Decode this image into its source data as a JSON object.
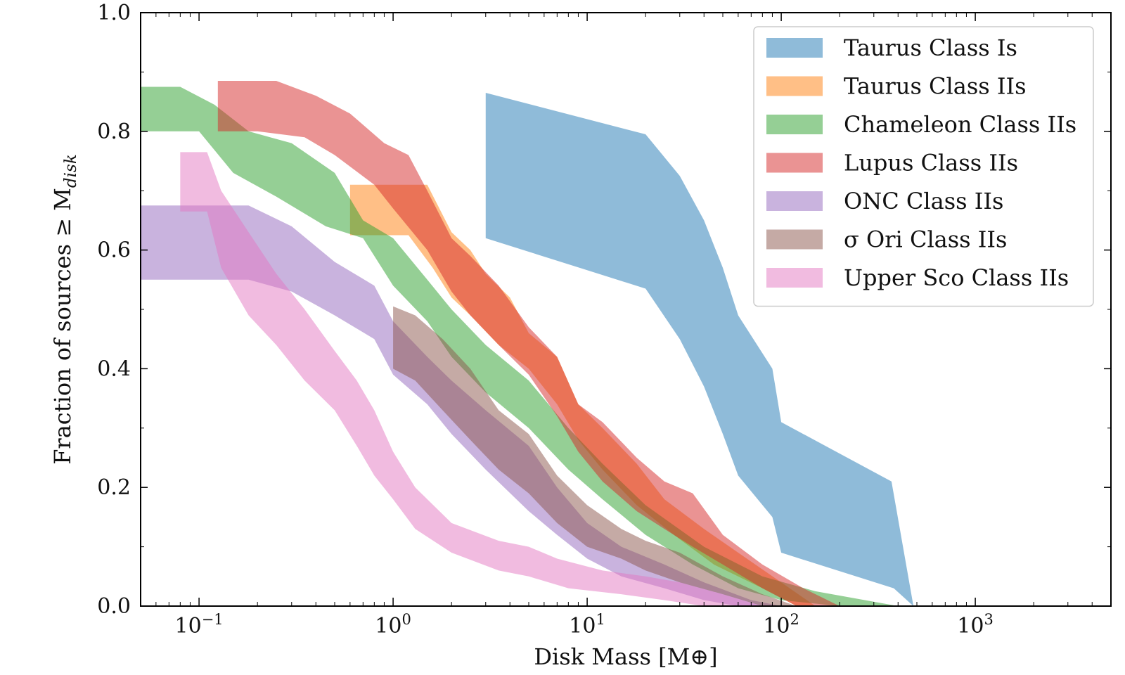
{
  "chart_data": {
    "type": "area",
    "xlabel": "Disk Mass [M⊕]",
    "ylabel": "Fraction of sources ≥ M",
    "ylabel_sub": "disk",
    "xscale": "log",
    "xlim": [
      0.05,
      5000
    ],
    "ylim": [
      0,
      1.0
    ],
    "grid": false,
    "legend_position": "top-right",
    "xticks": [
      {
        "value": 0.1,
        "base": "10",
        "exp": "−1"
      },
      {
        "value": 1,
        "base": "10",
        "exp": "0"
      },
      {
        "value": 10,
        "base": "10",
        "exp": "1"
      },
      {
        "value": 100,
        "base": "10",
        "exp": "2"
      },
      {
        "value": 1000,
        "base": "10",
        "exp": "3"
      }
    ],
    "yticks": [
      "0.0",
      "0.2",
      "0.4",
      "0.6",
      "0.8",
      "1.0"
    ],
    "series": [
      {
        "name": "Taurus Class Is",
        "color": "#1f77b4",
        "upper": [
          [
            3,
            0.865
          ],
          [
            20,
            0.795
          ],
          [
            30,
            0.725
          ],
          [
            40,
            0.65
          ],
          [
            50,
            0.57
          ],
          [
            60,
            0.49
          ],
          [
            90,
            0.4
          ],
          [
            100,
            0.31
          ],
          [
            370,
            0.21
          ],
          [
            480,
            0.0
          ]
        ],
        "lower": [
          [
            3,
            0.62
          ],
          [
            20,
            0.535
          ],
          [
            30,
            0.45
          ],
          [
            40,
            0.37
          ],
          [
            50,
            0.29
          ],
          [
            60,
            0.22
          ],
          [
            90,
            0.15
          ],
          [
            100,
            0.09
          ],
          [
            380,
            0.03
          ],
          [
            480,
            0.0
          ]
        ]
      },
      {
        "name": "Taurus Class IIs",
        "color": "#ff7f0e",
        "upper": [
          [
            0.6,
            0.71
          ],
          [
            1.5,
            0.71
          ],
          [
            2,
            0.63
          ],
          [
            2.5,
            0.6
          ],
          [
            3,
            0.56
          ],
          [
            4,
            0.52
          ],
          [
            5,
            0.46
          ],
          [
            7,
            0.42
          ],
          [
            9,
            0.34
          ],
          [
            12,
            0.3
          ],
          [
            18,
            0.24
          ],
          [
            25,
            0.18
          ],
          [
            40,
            0.13
          ],
          [
            60,
            0.09
          ],
          [
            100,
            0.04
          ],
          [
            150,
            0.0
          ]
        ],
        "lower": [
          [
            0.6,
            0.625
          ],
          [
            1.2,
            0.625
          ],
          [
            1.6,
            0.57
          ],
          [
            2,
            0.52
          ],
          [
            2.5,
            0.49
          ],
          [
            3.5,
            0.44
          ],
          [
            5,
            0.4
          ],
          [
            7,
            0.34
          ],
          [
            9,
            0.28
          ],
          [
            12,
            0.23
          ],
          [
            18,
            0.17
          ],
          [
            28,
            0.12
          ],
          [
            45,
            0.07
          ],
          [
            80,
            0.03
          ],
          [
            120,
            0.0
          ]
        ]
      },
      {
        "name": "Chameleon Class IIs",
        "color": "#2ca02c",
        "upper": [
          [
            0.05,
            0.875
          ],
          [
            0.08,
            0.875
          ],
          [
            0.12,
            0.845
          ],
          [
            0.18,
            0.8
          ],
          [
            0.3,
            0.78
          ],
          [
            0.5,
            0.73
          ],
          [
            0.7,
            0.65
          ],
          [
            1,
            0.62
          ],
          [
            1.5,
            0.55
          ],
          [
            2,
            0.5
          ],
          [
            3,
            0.44
          ],
          [
            5,
            0.38
          ],
          [
            8,
            0.3
          ],
          [
            12,
            0.24
          ],
          [
            20,
            0.17
          ],
          [
            40,
            0.1
          ],
          [
            80,
            0.05
          ],
          [
            150,
            0.025
          ],
          [
            400,
            0.0
          ]
        ],
        "lower": [
          [
            0.05,
            0.8
          ],
          [
            0.1,
            0.8
          ],
          [
            0.15,
            0.73
          ],
          [
            0.25,
            0.69
          ],
          [
            0.45,
            0.64
          ],
          [
            0.7,
            0.62
          ],
          [
            1,
            0.54
          ],
          [
            1.5,
            0.48
          ],
          [
            2,
            0.42
          ],
          [
            3,
            0.36
          ],
          [
            5,
            0.3
          ],
          [
            8,
            0.23
          ],
          [
            12,
            0.18
          ],
          [
            20,
            0.12
          ],
          [
            35,
            0.07
          ],
          [
            60,
            0.03
          ],
          [
            100,
            0.01
          ],
          [
            200,
            0.0
          ]
        ]
      },
      {
        "name": "Lupus Class IIs",
        "color": "#d62728",
        "upper": [
          [
            0.125,
            0.885
          ],
          [
            0.25,
            0.885
          ],
          [
            0.4,
            0.86
          ],
          [
            0.6,
            0.83
          ],
          [
            0.9,
            0.78
          ],
          [
            1.2,
            0.76
          ],
          [
            1.5,
            0.7
          ],
          [
            2,
            0.62
          ],
          [
            2.5,
            0.59
          ],
          [
            3.5,
            0.54
          ],
          [
            5,
            0.47
          ],
          [
            7,
            0.42
          ],
          [
            9,
            0.34
          ],
          [
            12,
            0.31
          ],
          [
            18,
            0.25
          ],
          [
            25,
            0.21
          ],
          [
            35,
            0.19
          ],
          [
            50,
            0.12
          ],
          [
            80,
            0.07
          ],
          [
            130,
            0.03
          ],
          [
            200,
            0.0
          ]
        ],
        "lower": [
          [
            0.125,
            0.8
          ],
          [
            0.2,
            0.8
          ],
          [
            0.35,
            0.79
          ],
          [
            0.5,
            0.76
          ],
          [
            0.8,
            0.71
          ],
          [
            1,
            0.67
          ],
          [
            1.5,
            0.6
          ],
          [
            2,
            0.53
          ],
          [
            2.5,
            0.49
          ],
          [
            3.5,
            0.44
          ],
          [
            5,
            0.39
          ],
          [
            7,
            0.32
          ],
          [
            9,
            0.26
          ],
          [
            12,
            0.21
          ],
          [
            18,
            0.16
          ],
          [
            25,
            0.13
          ],
          [
            35,
            0.1
          ],
          [
            50,
            0.07
          ],
          [
            80,
            0.03
          ],
          [
            120,
            0.0
          ]
        ]
      },
      {
        "name": "ONC Class IIs",
        "color": "#9467bd",
        "upper": [
          [
            0.05,
            0.675
          ],
          [
            0.18,
            0.675
          ],
          [
            0.3,
            0.64
          ],
          [
            0.5,
            0.58
          ],
          [
            0.8,
            0.54
          ],
          [
            1,
            0.48
          ],
          [
            1.5,
            0.42
          ],
          [
            2,
            0.38
          ],
          [
            3,
            0.33
          ],
          [
            5,
            0.27
          ],
          [
            7,
            0.2
          ],
          [
            10,
            0.14
          ],
          [
            15,
            0.1
          ],
          [
            25,
            0.07
          ],
          [
            40,
            0.04
          ],
          [
            70,
            0.01
          ],
          [
            100,
            0.0
          ]
        ],
        "lower": [
          [
            0.05,
            0.55
          ],
          [
            0.18,
            0.55
          ],
          [
            0.3,
            0.53
          ],
          [
            0.5,
            0.49
          ],
          [
            0.8,
            0.45
          ],
          [
            1,
            0.39
          ],
          [
            1.5,
            0.34
          ],
          [
            2,
            0.29
          ],
          [
            3,
            0.23
          ],
          [
            5,
            0.16
          ],
          [
            7,
            0.12
          ],
          [
            10,
            0.08
          ],
          [
            15,
            0.05
          ],
          [
            25,
            0.03
          ],
          [
            40,
            0.01
          ],
          [
            60,
            0.0
          ]
        ]
      },
      {
        "name": "σ Ori Class IIs",
        "color": "#8c564b",
        "upper": [
          [
            1,
            0.505
          ],
          [
            1.3,
            0.49
          ],
          [
            1.8,
            0.45
          ],
          [
            2.5,
            0.4
          ],
          [
            3.5,
            0.33
          ],
          [
            5,
            0.29
          ],
          [
            7,
            0.22
          ],
          [
            10,
            0.17
          ],
          [
            15,
            0.13
          ],
          [
            20,
            0.11
          ],
          [
            30,
            0.09
          ],
          [
            50,
            0.05
          ],
          [
            80,
            0.02
          ],
          [
            120,
            0.0
          ]
        ],
        "lower": [
          [
            1,
            0.4
          ],
          [
            1.3,
            0.38
          ],
          [
            1.8,
            0.33
          ],
          [
            2.5,
            0.28
          ],
          [
            3.5,
            0.23
          ],
          [
            5,
            0.19
          ],
          [
            7,
            0.14
          ],
          [
            10,
            0.1
          ],
          [
            15,
            0.08
          ],
          [
            20,
            0.06
          ],
          [
            30,
            0.04
          ],
          [
            50,
            0.02
          ],
          [
            80,
            0.0
          ]
        ]
      },
      {
        "name": "Upper Sco Class IIs",
        "color": "#e377c2",
        "upper": [
          [
            0.08,
            0.765
          ],
          [
            0.11,
            0.765
          ],
          [
            0.13,
            0.7
          ],
          [
            0.18,
            0.63
          ],
          [
            0.25,
            0.56
          ],
          [
            0.35,
            0.5
          ],
          [
            0.5,
            0.43
          ],
          [
            0.65,
            0.38
          ],
          [
            0.8,
            0.33
          ],
          [
            1,
            0.26
          ],
          [
            1.3,
            0.2
          ],
          [
            2,
            0.14
          ],
          [
            3.5,
            0.11
          ],
          [
            5,
            0.1
          ],
          [
            7,
            0.08
          ],
          [
            12,
            0.06
          ],
          [
            20,
            0.05
          ],
          [
            30,
            0.04
          ],
          [
            50,
            0.02
          ],
          [
            80,
            0.0
          ]
        ],
        "lower": [
          [
            0.08,
            0.665
          ],
          [
            0.11,
            0.665
          ],
          [
            0.13,
            0.57
          ],
          [
            0.18,
            0.49
          ],
          [
            0.25,
            0.44
          ],
          [
            0.35,
            0.38
          ],
          [
            0.5,
            0.33
          ],
          [
            0.65,
            0.27
          ],
          [
            0.8,
            0.22
          ],
          [
            1,
            0.18
          ],
          [
            1.3,
            0.13
          ],
          [
            2,
            0.09
          ],
          [
            3.5,
            0.06
          ],
          [
            5,
            0.05
          ],
          [
            8,
            0.03
          ],
          [
            15,
            0.02
          ],
          [
            25,
            0.01
          ],
          [
            40,
            0.0
          ]
        ]
      }
    ]
  }
}
